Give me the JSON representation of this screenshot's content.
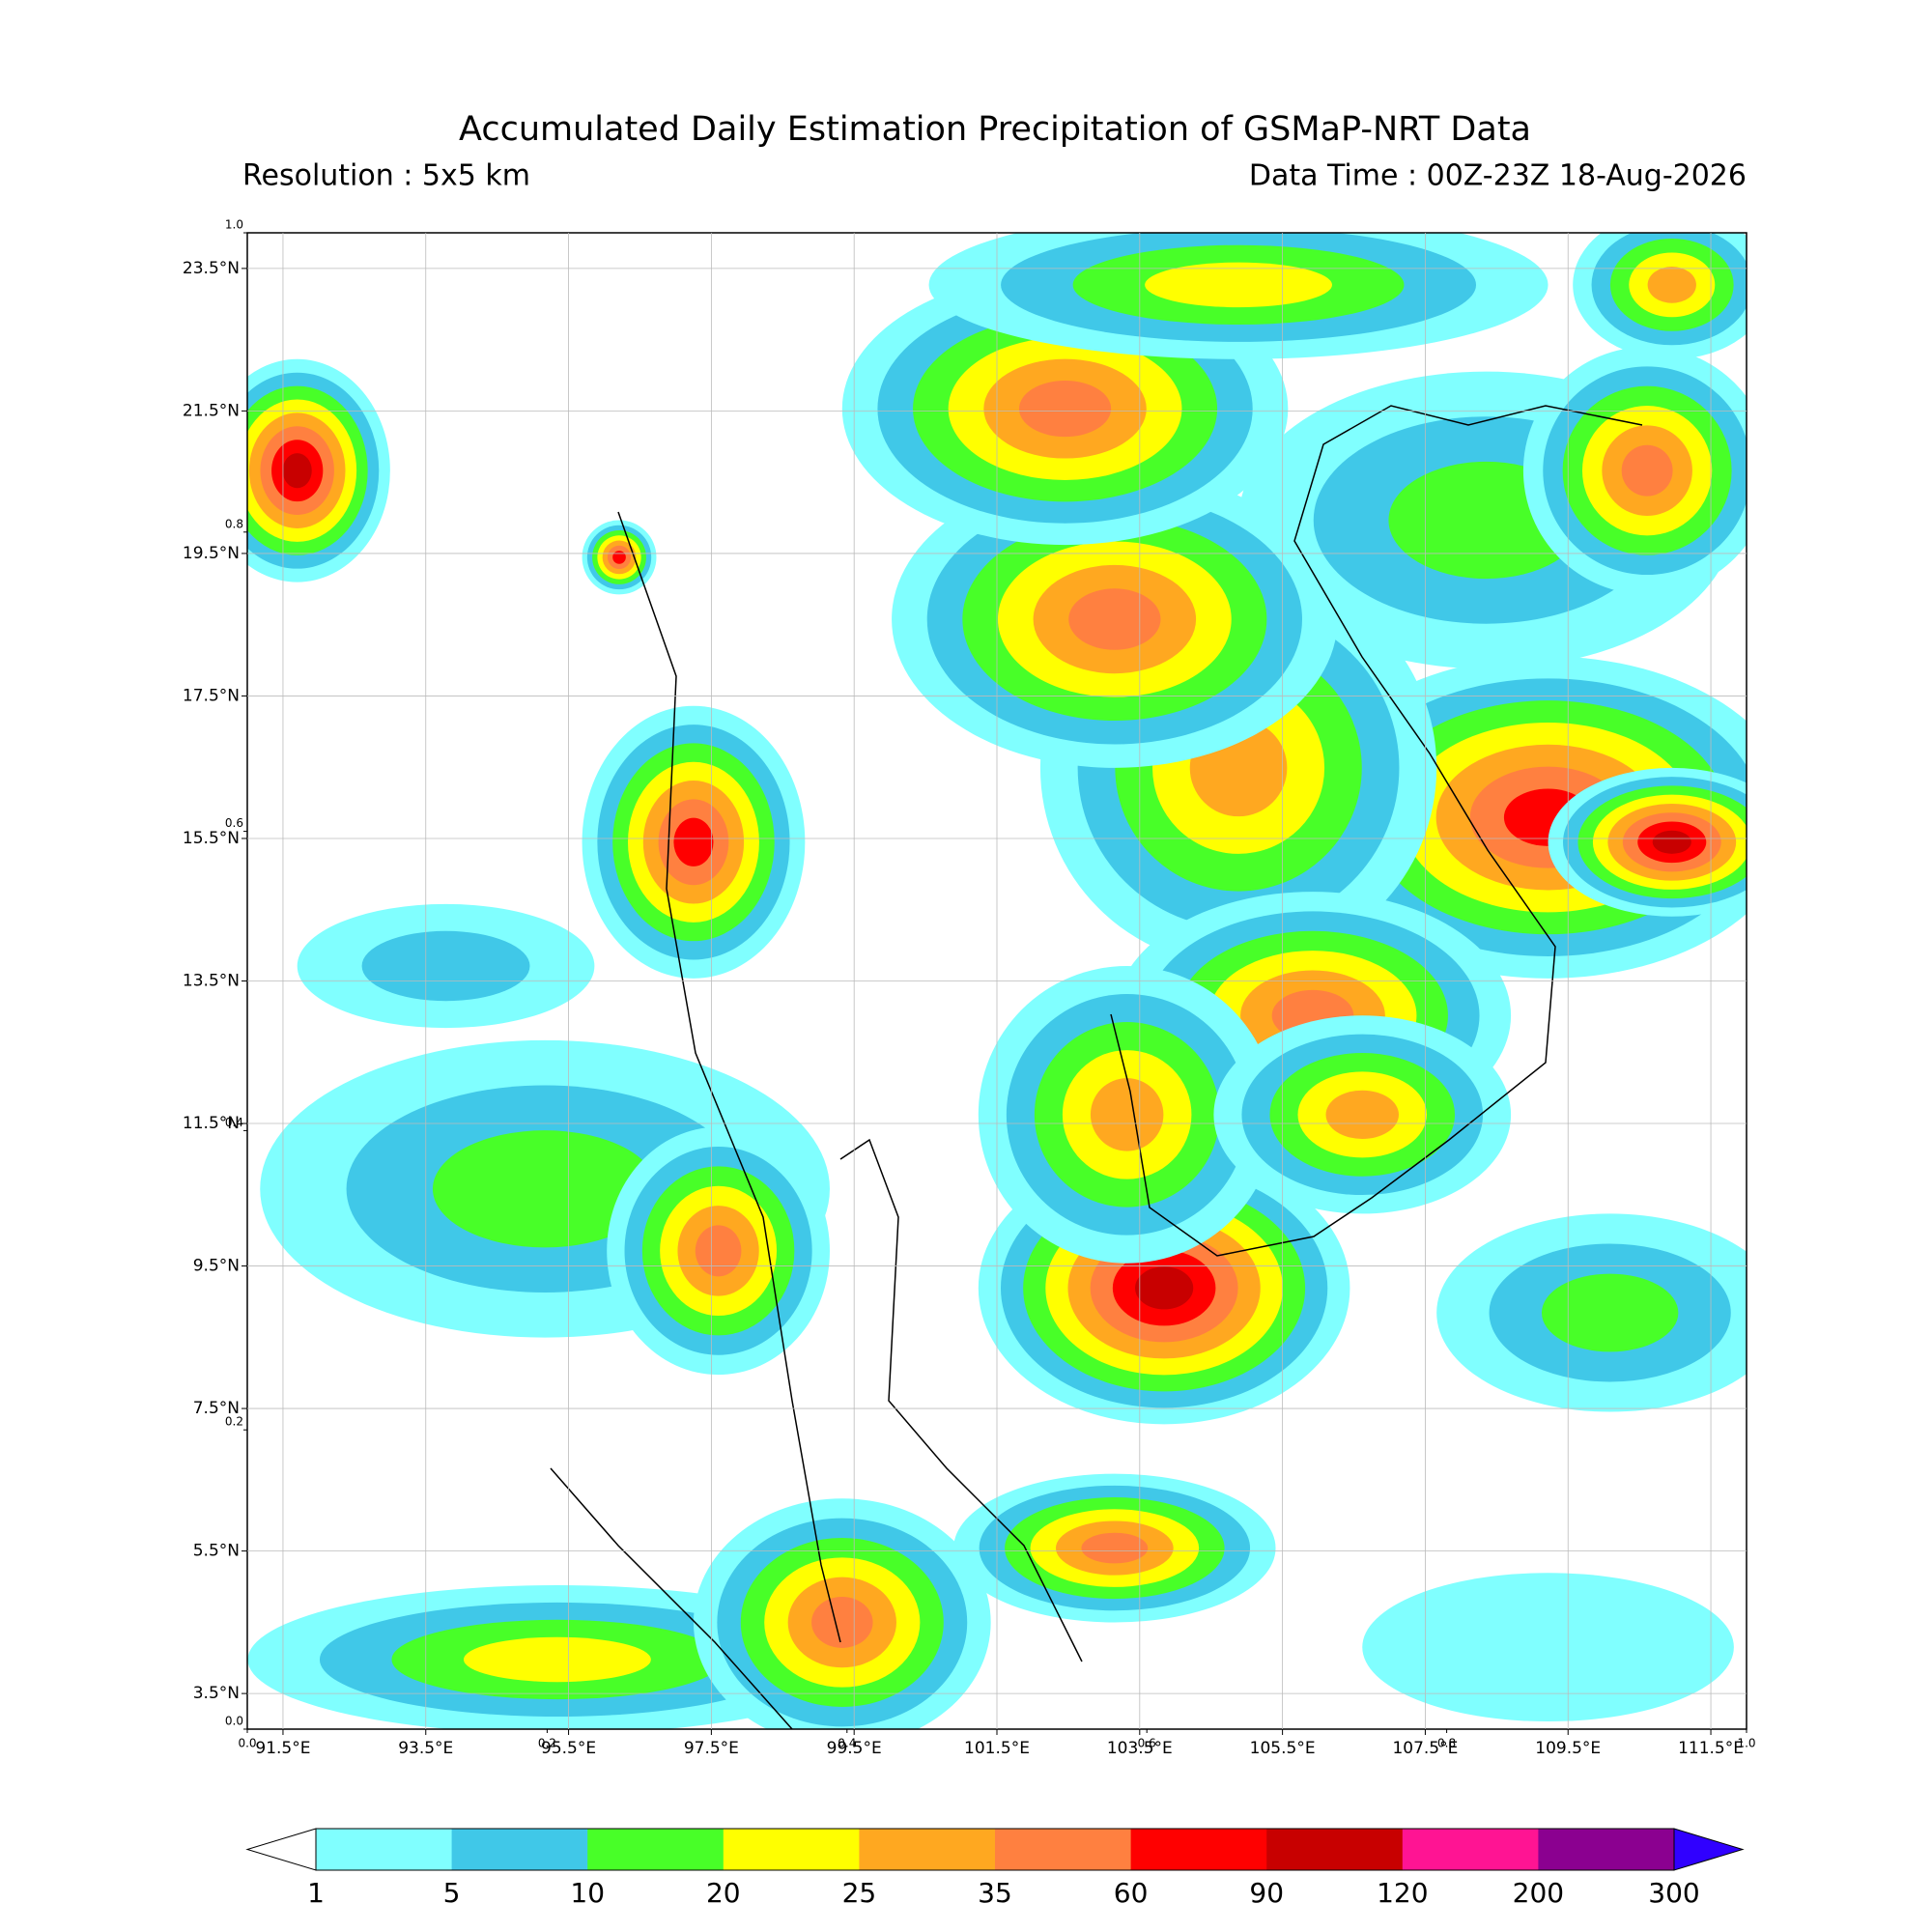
{
  "title": "Accumulated Daily Estimation Precipitation of GSMaP-NRT Data",
  "resolution": "Resolution : 5x5 km",
  "data_time": "Data Time : 00Z-23Z 18-Aug-2026",
  "map": {
    "xlim": [
      91,
      112
    ],
    "ylim": [
      3,
      24
    ],
    "grid": true,
    "xticks": [
      {
        "value": 91.5,
        "label": "91.5°E"
      },
      {
        "value": 93.5,
        "label": "93.5°E"
      },
      {
        "value": 95.5,
        "label": "95.5°E"
      },
      {
        "value": 97.5,
        "label": "97.5°E"
      },
      {
        "value": 99.5,
        "label": "99.5°E"
      },
      {
        "value": 101.5,
        "label": "101.5°E"
      },
      {
        "value": 103.5,
        "label": "103.5°E"
      },
      {
        "value": 105.5,
        "label": "105.5°E"
      },
      {
        "value": 107.5,
        "label": "107.5°E"
      },
      {
        "value": 109.5,
        "label": "109.5°E"
      },
      {
        "value": 111.5,
        "label": "111.5°E"
      }
    ],
    "yticks": [
      {
        "value": 3.5,
        "label": "3.5°N"
      },
      {
        "value": 5.5,
        "label": "5.5°N"
      },
      {
        "value": 7.5,
        "label": "7.5°N"
      },
      {
        "value": 9.5,
        "label": "9.5°N"
      },
      {
        "value": 11.5,
        "label": "11.5°N"
      },
      {
        "value": 13.5,
        "label": "13.5°N"
      },
      {
        "value": 15.5,
        "label": "15.5°N"
      },
      {
        "value": 17.5,
        "label": "17.5°N"
      },
      {
        "value": 19.5,
        "label": "19.5°N"
      },
      {
        "value": 21.5,
        "label": "21.5°N"
      },
      {
        "value": 23.5,
        "label": "23.5°N"
      }
    ],
    "ghost_ticks": [
      {
        "value": 0,
        "label": "0.0"
      },
      {
        "value": 0.2,
        "label": "0.2"
      },
      {
        "value": 0.4,
        "label": "0.4"
      },
      {
        "value": 0.6,
        "label": "0.6"
      },
      {
        "value": 0.8,
        "label": "0.8"
      },
      {
        "value": 1,
        "label": "1.0"
      }
    ]
  },
  "colorbar": {
    "levels": [
      1,
      5,
      10,
      20,
      25,
      35,
      60,
      90,
      120,
      200,
      300
    ],
    "colors": [
      "#80ffff",
      "#40c8e8",
      "#48ff28",
      "#ffff00",
      "#ffa820",
      "#ff8040",
      "#ff0000",
      "#c80000",
      "#ff1493",
      "#8b0090"
    ],
    "under_color": "#ffffff",
    "over_color": "#3000ff"
  }
}
